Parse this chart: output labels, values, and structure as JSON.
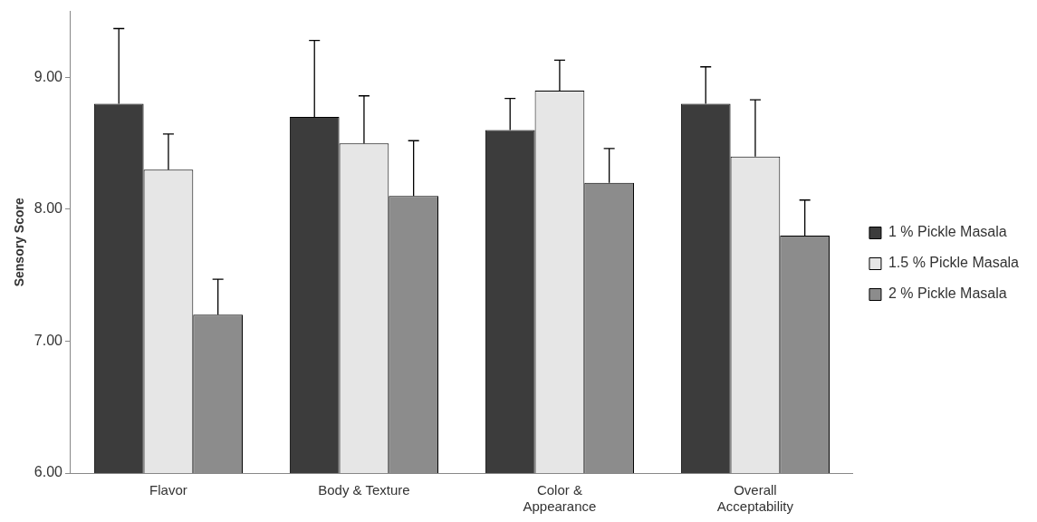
{
  "chart_data": {
    "type": "bar",
    "ylabel": "Sensory Score",
    "categories": [
      "Flavor",
      "Body & Texture",
      "Color & Appearance",
      "Overall Acceptability"
    ],
    "series": [
      {
        "name": "1 % Pickle Masala",
        "color": "#3c3c3c",
        "values": [
          8.8,
          8.7,
          8.6,
          8.8
        ],
        "errors": [
          [
            8.8,
            9.37
          ],
          [
            8.7,
            9.28
          ],
          [
            8.6,
            8.84
          ],
          [
            8.8,
            9.08
          ]
        ]
      },
      {
        "name": "1.5 % Pickle Masala",
        "color": "#e6e6e6",
        "values": [
          8.3,
          8.5,
          8.9,
          8.4
        ],
        "errors": [
          [
            8.3,
            8.57
          ],
          [
            8.5,
            8.86
          ],
          [
            8.9,
            9.13
          ],
          [
            8.4,
            8.83
          ]
        ]
      },
      {
        "name": "2 % Pickle Masala",
        "color": "#8c8c8c",
        "values": [
          7.2,
          8.1,
          8.2,
          7.8
        ],
        "errors": [
          [
            7.2,
            7.47
          ],
          [
            8.1,
            8.52
          ],
          [
            8.2,
            8.46
          ],
          [
            7.8,
            8.07
          ]
        ]
      }
    ],
    "ylim": [
      6,
      9.5
    ],
    "yticks": [
      {
        "value": 6,
        "label": "6.00"
      },
      {
        "value": 7,
        "label": "7.00"
      },
      {
        "value": 8,
        "label": "8.00"
      },
      {
        "value": 9,
        "label": "9.00"
      }
    ],
    "grid": false,
    "legend": "right"
  }
}
